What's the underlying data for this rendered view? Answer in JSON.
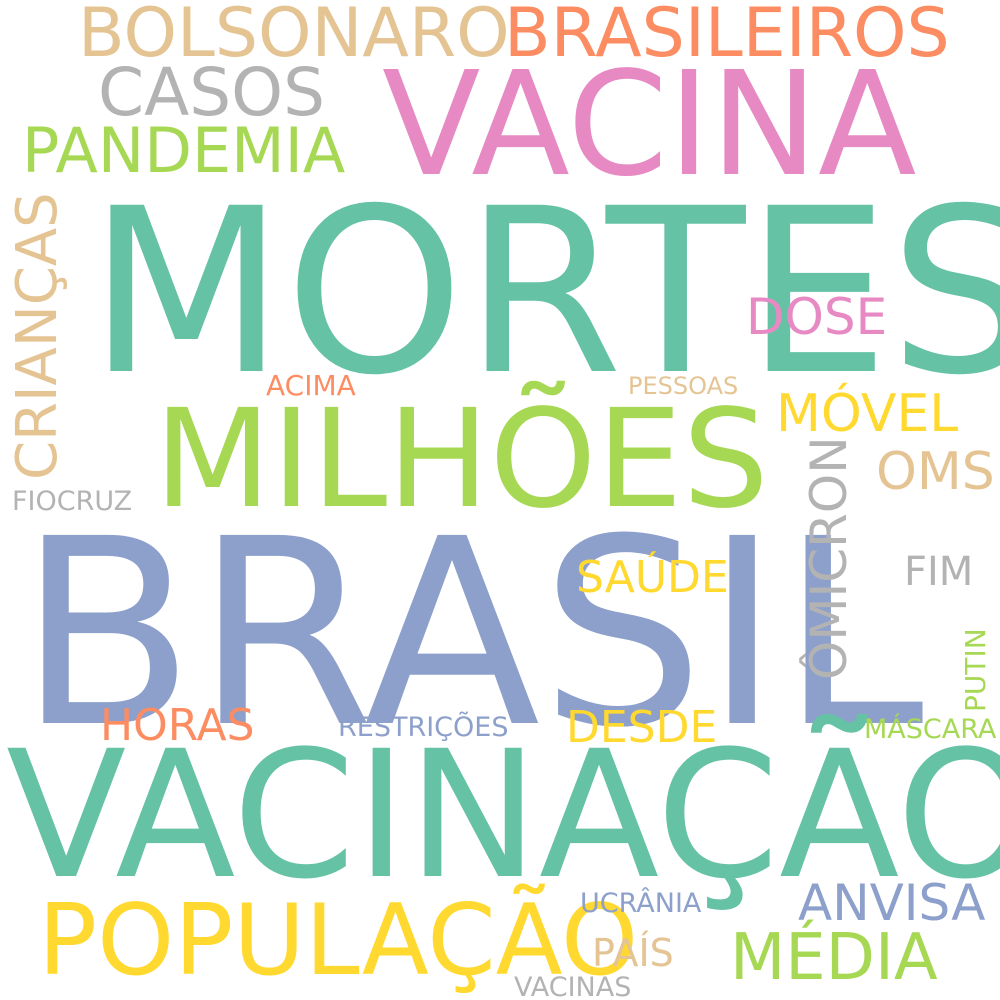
{
  "words": {
    "brasil": "BRASIL",
    "mortes": "MORTES",
    "vacinacao": "VACINAÇÃO",
    "vacina": "VACINA",
    "milhoes": "MILHÕES",
    "populacao": "POPULAÇÃO",
    "bolsonaro": "BOLSONARO",
    "brasileiros": "BRASILEIROS",
    "casos": "CASOS",
    "pandemia": "PANDEMIA",
    "criancas": "CRIANÇAS",
    "media": "MÉDIA",
    "dose": "DOSE",
    "movel": "MÓVEL",
    "oms": "OMS",
    "omicron": "ÔMICRON",
    "anvisa": "ANVISA",
    "horas": "HORAS",
    "desde": "DESDE",
    "saude": "SAÚDE",
    "fim": "FIM",
    "pais": "PAÍS",
    "acima": "ACIMA",
    "pessoas": "PESSOAS",
    "restricoes": "RESTRIÇÕES",
    "mascara": "MÁSCARA",
    "ucrania": "UCRÂNIA",
    "putin": "PUTIN",
    "fiocruz": "FIOCRUZ",
    "vacinas": "VACINAS"
  },
  "colors": {
    "background": "#ffffff",
    "green": "#66c2a5",
    "pink": "#e78ac3",
    "blue": "#8da0cb",
    "lime": "#a6d854",
    "yellow": "#ffd92f",
    "orange": "#fc8d62",
    "tan": "#e5c494",
    "gray": "#b3b3b3"
  }
}
